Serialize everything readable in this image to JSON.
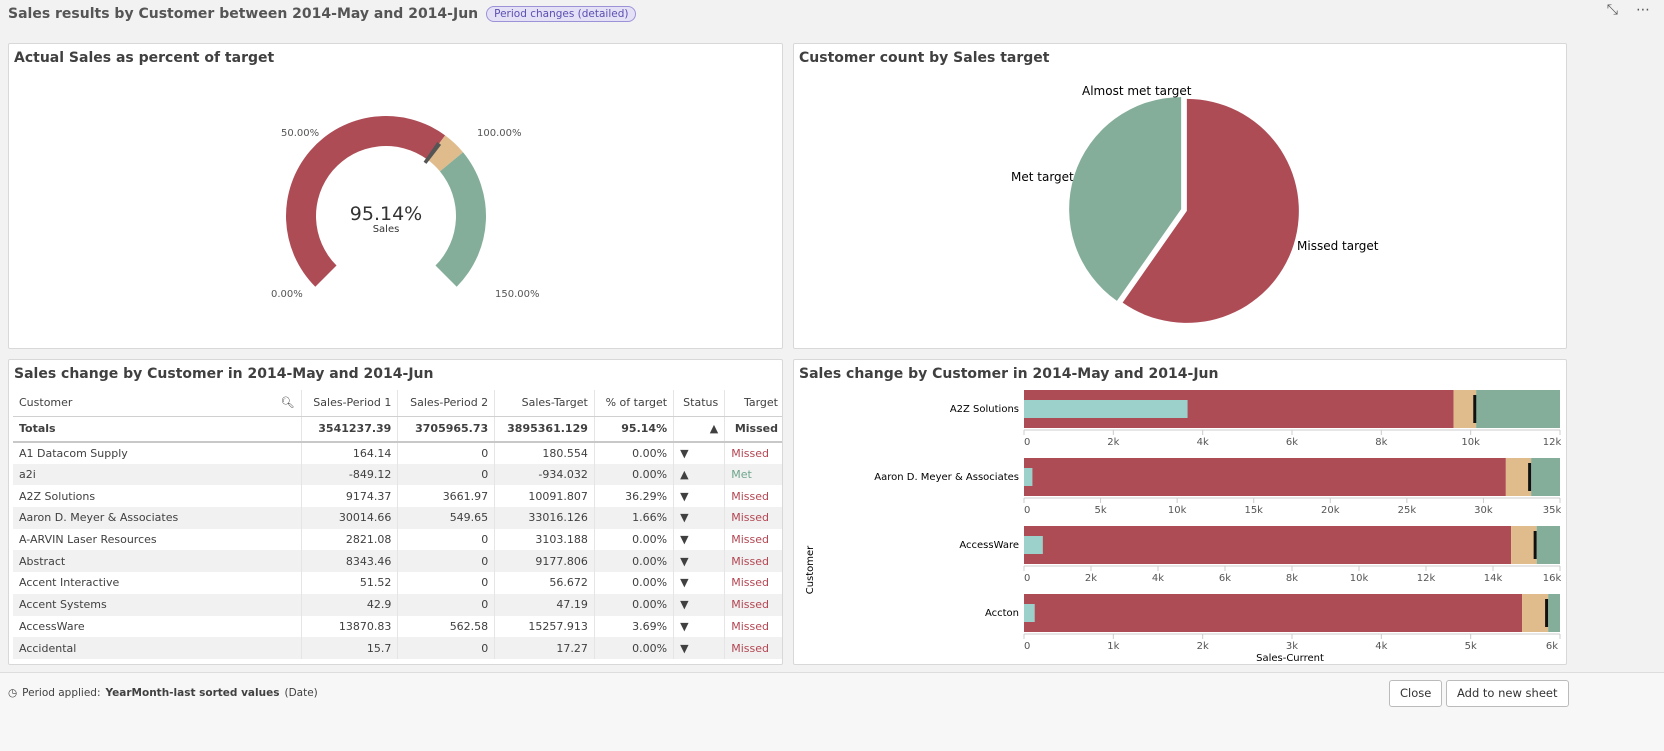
{
  "header": {
    "title": "Sales results by Customer between 2014-May and 2014-Jun",
    "badge": "Period changes (detailed)"
  },
  "gauge": {
    "title": "Actual Sales as percent of target",
    "value_label": "95.14%",
    "measure": "Sales",
    "value": 95.14,
    "min": 0,
    "max": 150,
    "ticks": [
      "0.00%",
      "50.00%",
      "100.00%",
      "150.00%"
    ],
    "colors": {
      "missed": "#ae4c56",
      "almost": "#e0bc8c",
      "met": "#84ae9a",
      "needle": "#555555"
    }
  },
  "pie": {
    "title": "Customer count by Sales target",
    "slices": [
      {
        "label": "Missed target",
        "value": 172,
        "color": "#ae4c56"
      },
      {
        "label": "Met target",
        "value": 116,
        "color": "#84ae9a"
      },
      {
        "label": "Almost met target",
        "value": 0,
        "color": "#e0bc8c"
      }
    ]
  },
  "table": {
    "title": "Sales change by Customer in 2014-May and 2014-Jun",
    "columns": [
      "Customer",
      "Sales-Period 1",
      "Sales-Period 2",
      "Sales-Target",
      "% of target",
      "Status",
      "Target"
    ],
    "totals": [
      "Totals",
      "3541237.39",
      "3705965.73",
      "3895361.129",
      "95.14%",
      "▲",
      "Missed"
    ],
    "rows": [
      [
        "A1 Datacom Supply",
        "164.14",
        "0",
        "180.554",
        "0.00%",
        "▼",
        "Missed"
      ],
      [
        "a2i",
        "-849.12",
        "0",
        "-934.032",
        "0.00%",
        "▲",
        "Met"
      ],
      [
        "A2Z Solutions",
        "9174.37",
        "3661.97",
        "10091.807",
        "36.29%",
        "▼",
        "Missed"
      ],
      [
        "Aaron D. Meyer & Associates",
        "30014.66",
        "549.65",
        "33016.126",
        "1.66%",
        "▼",
        "Missed"
      ],
      [
        "A-ARVIN Laser Resources",
        "2821.08",
        "0",
        "3103.188",
        "0.00%",
        "▼",
        "Missed"
      ],
      [
        "Abstract",
        "8343.46",
        "0",
        "9177.806",
        "0.00%",
        "▼",
        "Missed"
      ],
      [
        "Accent Interactive",
        "51.52",
        "0",
        "56.672",
        "0.00%",
        "▼",
        "Missed"
      ],
      [
        "Accent Systems",
        "42.9",
        "0",
        "47.19",
        "0.00%",
        "▼",
        "Missed"
      ],
      [
        "AccessWare",
        "13870.83",
        "562.58",
        "15257.913",
        "3.69%",
        "▼",
        "Missed"
      ],
      [
        "Accidental",
        "15.7",
        "0",
        "17.27",
        "0.00%",
        "▼",
        "Missed"
      ]
    ]
  },
  "chart_data": {
    "type": "bullet",
    "title": "Sales change by Customer in 2014-May and 2014-Jun",
    "ylabel": "Customer",
    "xlabel": "Sales-Current",
    "items": [
      {
        "name": "A2Z Solutions",
        "current": 3661.97,
        "target": 10091.807,
        "max": 12000,
        "ticks": [
          "0",
          "2k",
          "4k",
          "6k",
          "8k",
          "10k",
          "12k"
        ]
      },
      {
        "name": "Aaron D. Meyer & Associates",
        "current": 549.65,
        "target": 33016.126,
        "max": 35000,
        "ticks": [
          "0",
          "5k",
          "10k",
          "15k",
          "20k",
          "25k",
          "30k",
          "35k"
        ]
      },
      {
        "name": "AccessWare",
        "current": 562.58,
        "target": 15257.913,
        "max": 16000,
        "ticks": [
          "0",
          "2k",
          "4k",
          "6k",
          "8k",
          "10k",
          "12k",
          "14k",
          "16k"
        ]
      },
      {
        "name": "Accton",
        "current": 120,
        "target": 5850,
        "max": 6000,
        "ticks": [
          "0",
          "1k",
          "2k",
          "3k",
          "4k",
          "5k",
          "6k"
        ]
      }
    ],
    "colors": {
      "current": "#9bd0cb",
      "missed": "#ae4c56",
      "almost": "#e0bc8c",
      "met": "#84ae9a"
    }
  },
  "footer": {
    "label": "Period applied:",
    "value": "YearMonth-last sorted values",
    "suffix": "(Date)",
    "close": "Close",
    "add": "Add to new sheet"
  }
}
